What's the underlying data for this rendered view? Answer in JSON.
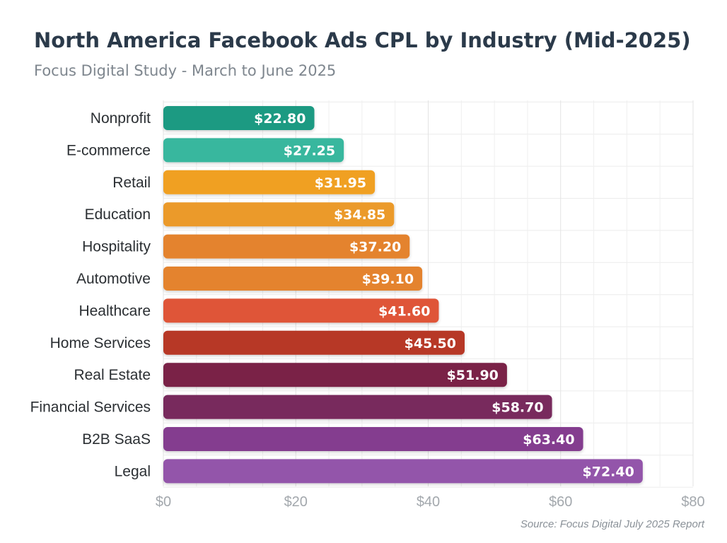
{
  "chart_data": {
    "type": "bar",
    "orientation": "horizontal",
    "title": "North America Facebook Ads CPL by Industry (Mid-2025)",
    "subtitle": "Focus Digital Study - March to June 2025",
    "source": "Source: Focus Digital July 2025 Report",
    "xlabel": "",
    "ylabel": "",
    "xlim": [
      0,
      80
    ],
    "x_ticks": [
      0,
      20,
      40,
      60,
      80
    ],
    "x_tick_labels": [
      "$0",
      "$20",
      "$40",
      "$60",
      "$80"
    ],
    "grid": true,
    "categories": [
      "Nonprofit",
      "E-commerce",
      "Retail",
      "Education",
      "Hospitality",
      "Automotive",
      "Healthcare",
      "Home Services",
      "Real Estate",
      "Financial Services",
      "B2B SaaS",
      "Legal"
    ],
    "values": [
      22.8,
      27.25,
      31.95,
      34.85,
      37.2,
      39.1,
      41.6,
      45.5,
      51.9,
      58.7,
      63.4,
      72.4
    ],
    "value_labels": [
      "$22.80",
      "$27.25",
      "$31.95",
      "$34.85",
      "$37.20",
      "$39.10",
      "$41.60",
      "$45.50",
      "$51.90",
      "$58.70",
      "$63.40",
      "$72.40"
    ],
    "colors": [
      "#1a9a82",
      "#38b79e",
      "#f0a024",
      "#eb9a2c",
      "#e4832e",
      "#e4832e",
      "#df5439",
      "#b73828",
      "#7a2446",
      "#782b5d",
      "#843c8f",
      "#9354aa"
    ]
  }
}
